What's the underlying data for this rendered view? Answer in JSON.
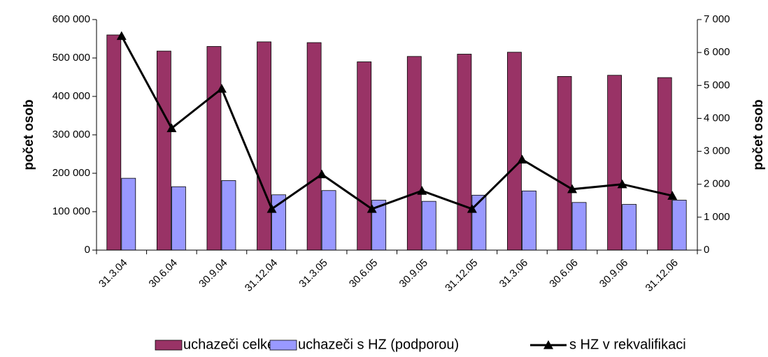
{
  "chart_data": {
    "type": "bar",
    "categories": [
      "31.3.04",
      "30.6.04",
      "30.9.04",
      "31.12.04",
      "31.3.05",
      "30.6.05",
      "30.9.05",
      "31.12.05",
      "31.3.06",
      "30.6.06",
      "30.9.06",
      "31.12.06"
    ],
    "series": [
      {
        "name": "uchazeči celkem",
        "color": "#993366",
        "values": [
          560000,
          518000,
          530000,
          542000,
          540000,
          490000,
          504000,
          510000,
          515000,
          452000,
          455000,
          449000
        ]
      },
      {
        "name": "uchazeči s HZ (podporou)",
        "color": "#9999ff",
        "values": [
          187000,
          165000,
          181000,
          144000,
          155000,
          130000,
          127000,
          143000,
          154000,
          124000,
          119000,
          130000
        ]
      },
      {
        "name": "s HZ v rekvalifikaci",
        "color": "#000000",
        "type": "line",
        "axis": "y2",
        "values": [
          6500,
          3700,
          4900,
          1250,
          2300,
          1250,
          1800,
          1250,
          2750,
          1850,
          2000,
          1650
        ]
      }
    ],
    "ylabel": "počet osob",
    "y2label": "počet osob",
    "ylim": [
      0,
      600000
    ],
    "yticks": [
      0,
      {
        "value": 100000,
        "label": "100 000"
      },
      {
        "value": 200000,
        "label": "200 000"
      },
      {
        "value": 300000,
        "label": "300 000"
      },
      {
        "value": 400000,
        "label": "400 000"
      },
      {
        "value": 500000,
        "label": "500 000"
      },
      {
        "value": 600000,
        "label": "600 000"
      }
    ],
    "y2lim": [
      0,
      7000
    ],
    "y2ticks": [
      0,
      {
        "value": 1000,
        "label": "1 000"
      },
      {
        "value": 2000,
        "label": "2 000"
      },
      {
        "value": 3000,
        "label": "3 000"
      },
      {
        "value": 4000,
        "label": "4 000"
      },
      {
        "value": 5000,
        "label": "5 000"
      },
      {
        "value": 6000,
        "label": "6 000"
      },
      {
        "value": 7000,
        "label": "7 000"
      }
    ],
    "legend": "bottom"
  }
}
